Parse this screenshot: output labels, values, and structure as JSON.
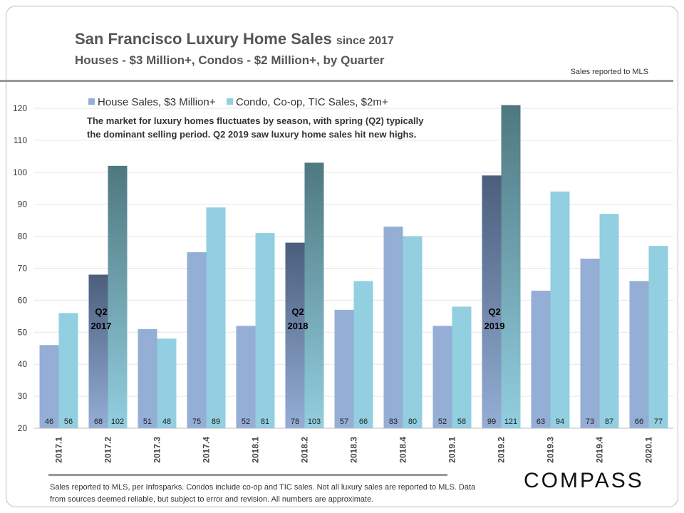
{
  "header": {
    "title": "San Francisco Luxury Home Sales",
    "title_suffix": "since 2017",
    "subtitle": "Houses - $3 Million+,  Condos  - $2 Million+,  by Quarter",
    "note": "Sales reported to MLS"
  },
  "footer": {
    "text": "Sales reported to MLS, per Infosparks.  Condos include co-op and TIC sales. Not all luxury sales are reported to MLS. Data from sources deemed reliable, but subject to error and revision.  All numbers are approximate.",
    "logo": "COMPASS"
  },
  "chart_data": {
    "type": "bar",
    "categories": [
      "2017.1",
      "2017.2",
      "2017.3",
      "2017.4",
      "2018.1",
      "2018.2",
      "2018.3",
      "2018.4",
      "2019.1",
      "2019.2",
      "2019.3",
      "2019.4",
      "2020.1"
    ],
    "series": [
      {
        "name": "House Sales, $3 Million+",
        "values": [
          46,
          68,
          51,
          75,
          52,
          78,
          57,
          83,
          52,
          99,
          63,
          73,
          66
        ],
        "color": "#94aed6"
      },
      {
        "name": "Condo, Co-op, TIC Sales, $2m+",
        "values": [
          56,
          102,
          48,
          89,
          81,
          103,
          66,
          80,
          58,
          121,
          94,
          87,
          77
        ],
        "color": "#92cfe0"
      }
    ],
    "highlighted": [
      {
        "category": "2017.2",
        "label": [
          "Q2",
          "2017"
        ]
      },
      {
        "category": "2018.2",
        "label": [
          "Q2",
          "2018"
        ]
      },
      {
        "category": "2019.2",
        "label": [
          "Q2",
          "2019"
        ]
      }
    ],
    "highlight_colors": {
      "house_top": "#4b5e7c",
      "condo_top": "#4f7880"
    },
    "annotation": [
      "The market for luxury homes fluctuates by season, with spring (Q2) typically",
      "the dominant selling period. Q2 2019 saw luxury home sales hit new highs."
    ],
    "yticks": [
      20,
      30,
      40,
      50,
      60,
      70,
      80,
      90,
      100,
      110,
      120
    ],
    "ylim": [
      20,
      125
    ],
    "grid": true,
    "legend": "top-left"
  }
}
